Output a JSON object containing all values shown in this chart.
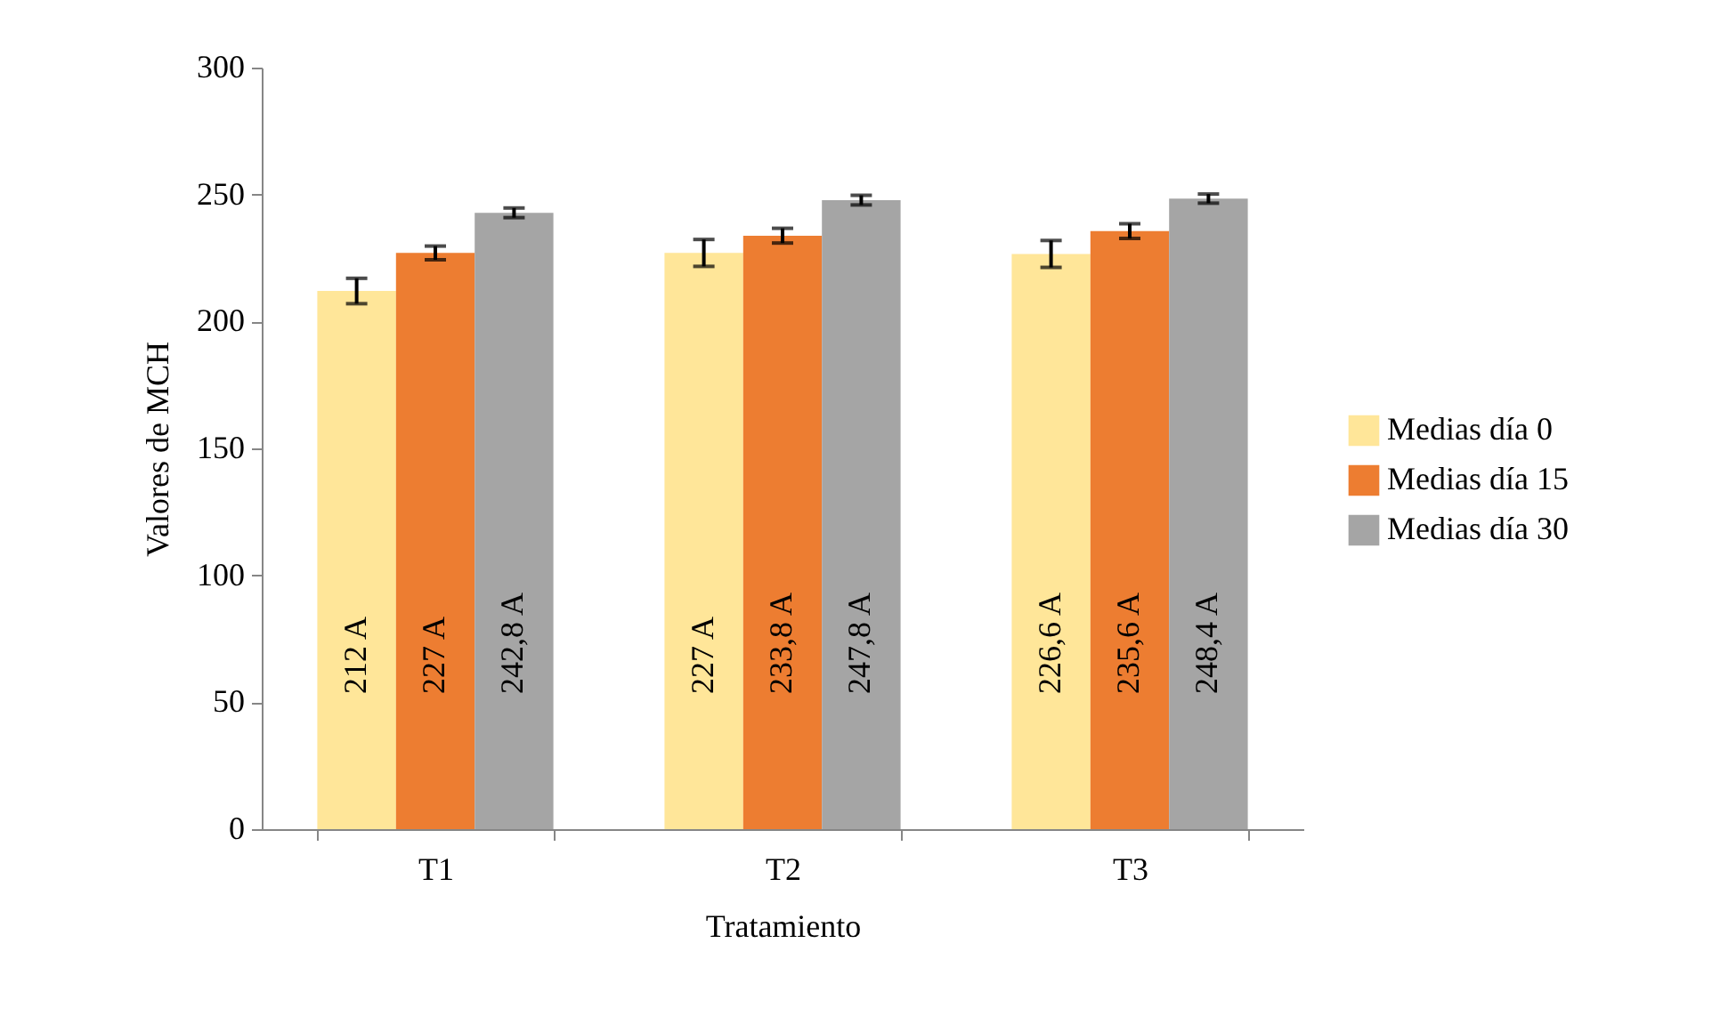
{
  "chart_data": {
    "type": "bar",
    "xlabel": "Tratamiento",
    "ylabel": "Valores de MCH",
    "categories": [
      "T1",
      "T2",
      "T3"
    ],
    "series": [
      {
        "name": "Medias día 0",
        "color": "#ffe699",
        "values": [
          212,
          227,
          226.6
        ],
        "errors": [
          5,
          5.3,
          5.3
        ],
        "value_labels": [
          "212 A",
          "227 A",
          "226,6 A"
        ]
      },
      {
        "name": "Medias día 15",
        "color": "#ed7d31",
        "values": [
          227,
          233.8,
          235.6
        ],
        "errors": [
          2.7,
          2.9,
          2.9
        ],
        "value_labels": [
          "227 A",
          "233,8 A",
          "235,6 A"
        ]
      },
      {
        "name": "Medias día 30",
        "color": "#a5a5a5",
        "values": [
          242.8,
          247.8,
          248.4
        ],
        "errors": [
          1.9,
          1.9,
          1.8
        ],
        "value_labels": [
          "242,8 A",
          "247,8 A",
          "248,4 A"
        ]
      }
    ],
    "ylim": [
      0,
      300
    ],
    "yticks": [
      0,
      50,
      100,
      150,
      200,
      250,
      300
    ],
    "legend": "right"
  }
}
